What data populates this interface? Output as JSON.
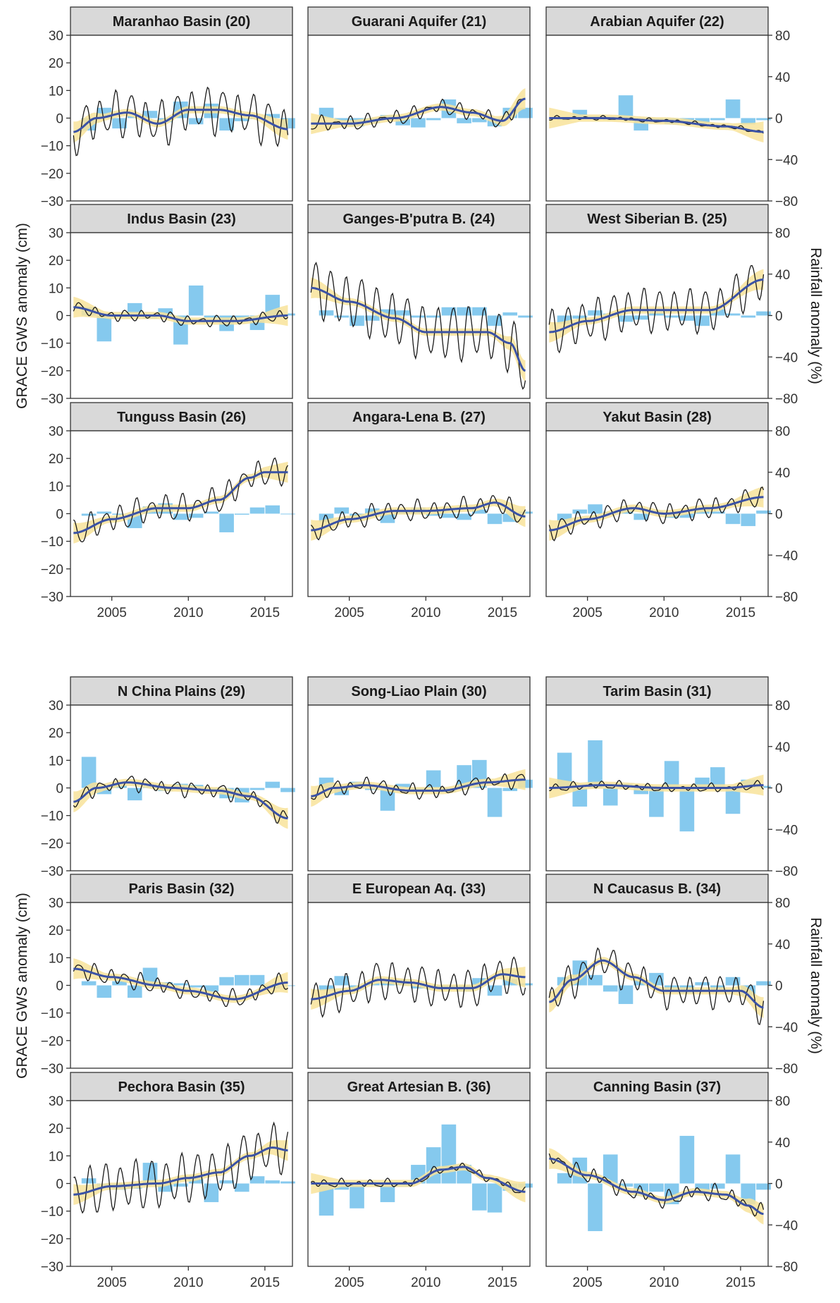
{
  "figure": {
    "left_axis_label": "GRACE GWS anomaly (cm)",
    "right_axis_label": "Rainfall anomaly (%)",
    "left_ticks": [
      30,
      20,
      10,
      0,
      -10,
      -20,
      -30
    ],
    "right_ticks": [
      80,
      40,
      0,
      -40,
      -80
    ],
    "x_ticks": [
      2005,
      2010,
      2015
    ],
    "colors": {
      "bar": "#85c9ee",
      "gws_line": "#1a1a1a",
      "smooth_line": "#3a52a6",
      "confidence_band": "#f8e39a",
      "strip_bg": "#d9d9d9",
      "panel_border": "#333333"
    }
  },
  "chart_data": [
    {
      "type": "bar+line",
      "title": "Maranhao Basin (20)",
      "xlim": [
        2002.3,
        2016.8
      ],
      "ylim_gws": [
        -30,
        30
      ],
      "ylim_rain": [
        -80,
        80
      ],
      "rain_years": [
        2003,
        2004,
        2005,
        2006,
        2007,
        2008,
        2009,
        2010,
        2011,
        2012,
        2013,
        2014,
        2015,
        2016
      ],
      "rain_values": [
        -12,
        10,
        -10,
        2,
        7,
        -4,
        16,
        -6,
        14,
        -12,
        -3,
        -1,
        4,
        -10
      ],
      "smooth_x": [
        2002.5,
        2004,
        2006,
        2008,
        2010,
        2012,
        2014,
        2016.5
      ],
      "smooth_y": [
        -5,
        0,
        2,
        -2,
        3,
        3,
        1,
        -4
      ],
      "amplitude": 7,
      "trend_noise": 3
    },
    {
      "type": "bar+line",
      "title": "Guarani Aquifer (21)",
      "xlim": [
        2002.3,
        2016.8
      ],
      "ylim_gws": [
        -30,
        30
      ],
      "ylim_rain": [
        -80,
        80
      ],
      "rain_years": [
        2003,
        2004,
        2005,
        2006,
        2007,
        2008,
        2009,
        2010,
        2011,
        2012,
        2013,
        2014,
        2015,
        2016
      ],
      "rain_values": [
        10,
        -3,
        -8,
        -5,
        3,
        -7,
        -9,
        -2,
        18,
        -5,
        -4,
        -8,
        10,
        10
      ],
      "smooth_x": [
        2002.5,
        2005,
        2008,
        2011,
        2013,
        2015,
        2016.5
      ],
      "smooth_y": [
        -2,
        -2,
        0,
        4,
        2,
        -1,
        7
      ],
      "amplitude": 2,
      "trend_noise": 1.5
    },
    {
      "type": "bar+line",
      "title": "Arabian Aquifer (22)",
      "xlim": [
        2002.3,
        2016.8
      ],
      "ylim_gws": [
        -30,
        30
      ],
      "ylim_rain": [
        -80,
        80
      ],
      "rain_years": [
        2003,
        2004,
        2005,
        2006,
        2007,
        2008,
        2009,
        2010,
        2011,
        2012,
        2013,
        2014,
        2015,
        2016
      ],
      "rain_values": [
        -2,
        8,
        2,
        -2,
        22,
        -12,
        -4,
        -6,
        -4,
        -5,
        -2,
        18,
        -6,
        -2
      ],
      "smooth_x": [
        2002.5,
        2006,
        2010,
        2014,
        2016.5
      ],
      "smooth_y": [
        0,
        0,
        -1,
        -3,
        -5
      ],
      "amplitude": 0.5,
      "trend_noise": 0.5
    },
    {
      "type": "bar+line",
      "title": "Indus Basin (23)",
      "xlim": [
        2002.3,
        2016.8
      ],
      "ylim_gws": [
        -30,
        30
      ],
      "ylim_rain": [
        -80,
        80
      ],
      "rain_years": [
        2003,
        2004,
        2005,
        2006,
        2007,
        2008,
        2009,
        2010,
        2011,
        2012,
        2013,
        2014,
        2015,
        2016
      ],
      "rain_values": [
        8,
        -25,
        -2,
        12,
        -3,
        7,
        -28,
        29,
        -2,
        -15,
        -2,
        -14,
        20,
        2
      ],
      "smooth_x": [
        2002.5,
        2005,
        2008,
        2010,
        2013,
        2016.5
      ],
      "smooth_y": [
        3,
        0,
        0,
        -2,
        -2,
        0
      ],
      "amplitude": 1.5,
      "trend_noise": 1
    },
    {
      "type": "bar+line",
      "title": "Ganges-B'putra B. (24)",
      "xlim": [
        2002.3,
        2016.8
      ],
      "ylim_gws": [
        -30,
        30
      ],
      "ylim_rain": [
        -80,
        80
      ],
      "rain_years": [
        2003,
        2004,
        2005,
        2006,
        2007,
        2008,
        2009,
        2010,
        2011,
        2012,
        2013,
        2014,
        2015,
        2016
      ],
      "rain_values": [
        5,
        -2,
        -10,
        -5,
        6,
        5,
        -2,
        -2,
        8,
        8,
        8,
        -10,
        3,
        -2
      ],
      "smooth_x": [
        2002.5,
        2005,
        2008,
        2010,
        2012,
        2014,
        2015.5,
        2016.5
      ],
      "smooth_y": [
        10,
        5,
        -1,
        -6,
        -6,
        -6,
        -10,
        -20
      ],
      "amplitude": 9,
      "trend_noise": 2
    },
    {
      "type": "bar+line",
      "title": "West Siberian B. (25)",
      "xlim": [
        2002.3,
        2016.8
      ],
      "ylim_gws": [
        -30,
        30
      ],
      "ylim_rain": [
        -80,
        80
      ],
      "rain_years": [
        2003,
        2004,
        2005,
        2006,
        2007,
        2008,
        2009,
        2010,
        2011,
        2012,
        2013,
        2014,
        2015,
        2016
      ],
      "rain_values": [
        -8,
        -3,
        5,
        2,
        -6,
        -4,
        3,
        -2,
        -5,
        -10,
        6,
        2,
        -2,
        4
      ],
      "smooth_x": [
        2002.5,
        2005,
        2008,
        2010,
        2013,
        2016.5
      ],
      "smooth_y": [
        -6,
        -2,
        2,
        2,
        2,
        13
      ],
      "amplitude": 7,
      "trend_noise": 2
    },
    {
      "type": "bar+line",
      "title": "Tunguss Basin (26)",
      "xlim": [
        2002.3,
        2016.8
      ],
      "ylim_gws": [
        -30,
        30
      ],
      "ylim_rain": [
        -80,
        80
      ],
      "rain_years": [
        2003,
        2004,
        2005,
        2006,
        2007,
        2008,
        2009,
        2010,
        2011,
        2012,
        2013,
        2014,
        2015,
        2016
      ],
      "rain_values": [
        -2,
        2,
        -1,
        -14,
        7,
        10,
        -6,
        -4,
        2,
        -18,
        -1,
        6,
        8,
        0
      ],
      "smooth_x": [
        2002.5,
        2005,
        2008,
        2010,
        2012,
        2014,
        2015,
        2016.5
      ],
      "smooth_y": [
        -7,
        -2,
        2,
        2,
        5,
        13,
        15,
        15
      ],
      "amplitude": 4,
      "trend_noise": 2
    },
    {
      "type": "bar+line",
      "title": "Angara-Lena B. (27)",
      "xlim": [
        2002.3,
        2016.8
      ],
      "ylim_gws": [
        -30,
        30
      ],
      "ylim_rain": [
        -80,
        80
      ],
      "rain_years": [
        2003,
        2004,
        2005,
        2006,
        2007,
        2008,
        2009,
        2010,
        2011,
        2012,
        2013,
        2014,
        2015,
        2016
      ],
      "rain_values": [
        -8,
        6,
        -3,
        5,
        -9,
        3,
        6,
        -2,
        -4,
        -6,
        4,
        -10,
        -8,
        2
      ],
      "smooth_x": [
        2002.5,
        2005,
        2008,
        2010,
        2013,
        2014.5,
        2016.5
      ],
      "smooth_y": [
        -6,
        -2,
        1,
        1,
        2,
        4,
        -1
      ],
      "amplitude": 3,
      "trend_noise": 1.5
    },
    {
      "type": "bar+line",
      "title": "Yakut Basin (28)",
      "xlim": [
        2002.3,
        2016.8
      ],
      "ylim_gws": [
        -30,
        30
      ],
      "ylim_rain": [
        -80,
        80
      ],
      "rain_years": [
        2003,
        2004,
        2005,
        2006,
        2007,
        2008,
        2009,
        2010,
        2011,
        2012,
        2013,
        2014,
        2015,
        2016
      ],
      "rain_values": [
        -8,
        4,
        9,
        2,
        5,
        -6,
        3,
        -4,
        -4,
        4,
        2,
        -10,
        -12,
        3
      ],
      "smooth_x": [
        2002.5,
        2005,
        2008,
        2010,
        2013,
        2016.5
      ],
      "smooth_y": [
        -6,
        -2,
        2,
        0,
        2,
        6
      ],
      "amplitude": 3,
      "trend_noise": 1.5
    },
    {
      "type": "bar+line",
      "title": "N China Plains (29)",
      "xlim": [
        2002.3,
        2016.8
      ],
      "ylim_gws": [
        -30,
        30
      ],
      "ylim_rain": [
        -80,
        80
      ],
      "rain_years": [
        2003,
        2004,
        2005,
        2006,
        2007,
        2008,
        2009,
        2010,
        2011,
        2012,
        2013,
        2014,
        2015,
        2016
      ],
      "rain_values": [
        30,
        -6,
        3,
        -12,
        2,
        -3,
        4,
        3,
        -2,
        -10,
        -14,
        -2,
        6,
        -4
      ],
      "smooth_x": [
        2002.5,
        2004,
        2006,
        2009,
        2012,
        2014,
        2016.5
      ],
      "smooth_y": [
        -5,
        0,
        2,
        0,
        -1,
        -3,
        -11
      ],
      "amplitude": 2,
      "trend_noise": 1.5
    },
    {
      "type": "bar+line",
      "title": "Song-Liao Plain (30)",
      "xlim": [
        2002.3,
        2016.8
      ],
      "ylim_gws": [
        -30,
        30
      ],
      "ylim_rain": [
        -80,
        80
      ],
      "rain_years": [
        2003,
        2004,
        2005,
        2006,
        2007,
        2008,
        2009,
        2010,
        2011,
        2012,
        2013,
        2014,
        2015,
        2016
      ],
      "rain_values": [
        10,
        -7,
        6,
        -2,
        -22,
        4,
        -2,
        17,
        -4,
        22,
        27,
        -28,
        -3,
        8
      ],
      "smooth_x": [
        2002.5,
        2004,
        2006,
        2009,
        2011,
        2014,
        2016.5
      ],
      "smooth_y": [
        -3,
        0,
        1,
        -1,
        -1,
        2,
        3
      ],
      "amplitude": 2,
      "trend_noise": 1.5
    },
    {
      "type": "bar+line",
      "title": "Tarim Basin (31)",
      "xlim": [
        2002.3,
        2016.8
      ],
      "ylim_gws": [
        -30,
        30
      ],
      "ylim_rain": [
        -80,
        80
      ],
      "rain_years": [
        2003,
        2004,
        2005,
        2006,
        2007,
        2008,
        2009,
        2010,
        2011,
        2012,
        2013,
        2014,
        2015,
        2016
      ],
      "rain_values": [
        34,
        -18,
        46,
        -17,
        4,
        -6,
        -28,
        26,
        -42,
        10,
        20,
        -25,
        8,
        2
      ],
      "smooth_x": [
        2002.5,
        2006,
        2010,
        2014,
        2016.5
      ],
      "smooth_y": [
        0,
        1,
        0,
        0,
        1
      ],
      "amplitude": 1,
      "trend_noise": 1
    },
    {
      "type": "bar+line",
      "title": "Paris Basin (32)",
      "xlim": [
        2002.3,
        2016.8
      ],
      "ylim_gws": [
        -30,
        30
      ],
      "ylim_rain": [
        -80,
        80
      ],
      "rain_years": [
        2003,
        2004,
        2005,
        2006,
        2007,
        2008,
        2009,
        2010,
        2011,
        2012,
        2013,
        2014,
        2015,
        2016
      ],
      "rain_values": [
        4,
        -12,
        4,
        -12,
        17,
        3,
        2,
        -2,
        -6,
        8,
        10,
        10,
        -3,
        0
      ],
      "smooth_x": [
        2002.5,
        2005,
        2008,
        2010,
        2013,
        2016.5
      ],
      "smooth_y": [
        6,
        3,
        0,
        -2,
        -5,
        1
      ],
      "amplitude": 2.5,
      "trend_noise": 1.5
    },
    {
      "type": "bar+line",
      "title": "E European Aq. (33)",
      "xlim": [
        2002.3,
        2016.8
      ],
      "ylim_gws": [
        -30,
        30
      ],
      "ylim_rain": [
        -80,
        80
      ],
      "rain_years": [
        2003,
        2004,
        2005,
        2006,
        2007,
        2008,
        2009,
        2010,
        2011,
        2012,
        2013,
        2014,
        2015,
        2016
      ],
      "rain_values": [
        -5,
        9,
        -4,
        2,
        4,
        6,
        -3,
        -4,
        -2,
        -6,
        7,
        -10,
        6,
        2
      ],
      "smooth_x": [
        2002.5,
        2005,
        2007,
        2009,
        2011,
        2013,
        2015,
        2016.5
      ],
      "smooth_y": [
        -5,
        -2,
        2,
        1,
        -1,
        -1,
        4,
        3
      ],
      "amplitude": 6,
      "trend_noise": 2
    },
    {
      "type": "bar+line",
      "title": "N Caucasus B. (34)",
      "xlim": [
        2002.3,
        2016.8
      ],
      "ylim_gws": [
        -30,
        30
      ],
      "ylim_rain": [
        -80,
        80
      ],
      "rain_years": [
        2003,
        2004,
        2005,
        2006,
        2007,
        2008,
        2009,
        2010,
        2011,
        2012,
        2013,
        2014,
        2015,
        2016
      ],
      "rain_values": [
        8,
        24,
        10,
        -6,
        -18,
        5,
        12,
        -5,
        -8,
        3,
        -4,
        8,
        -10,
        4
      ],
      "smooth_x": [
        2002.5,
        2004,
        2006,
        2008,
        2010,
        2013,
        2015,
        2016.5
      ],
      "smooth_y": [
        -6,
        2,
        9,
        3,
        -2,
        -2,
        -2,
        -8
      ],
      "amplitude": 5,
      "trend_noise": 2
    },
    {
      "type": "bar+line",
      "title": "Pechora Basin (35)",
      "xlim": [
        2002.3,
        2016.8
      ],
      "ylim_gws": [
        -30,
        30
      ],
      "ylim_rain": [
        -80,
        80
      ],
      "rain_years": [
        2003,
        2004,
        2005,
        2006,
        2007,
        2008,
        2009,
        2010,
        2011,
        2012,
        2013,
        2014,
        2015,
        2016
      ],
      "rain_values": [
        5,
        -4,
        -6,
        -5,
        20,
        -8,
        -3,
        8,
        -18,
        3,
        -8,
        7,
        3,
        2
      ],
      "smooth_x": [
        2002.5,
        2005,
        2008,
        2010,
        2012,
        2014,
        2015.5,
        2016.5
      ],
      "smooth_y": [
        -4,
        -1,
        0,
        2,
        4,
        10,
        13,
        12
      ],
      "amplitude": 8,
      "trend_noise": 2
    },
    {
      "type": "bar+line",
      "title": "Great Artesian B. (36)",
      "xlim": [
        2002.3,
        2016.8
      ],
      "ylim_gws": [
        -30,
        30
      ],
      "ylim_rain": [
        -80,
        80
      ],
      "rain_years": [
        2003,
        2004,
        2005,
        2006,
        2007,
        2008,
        2009,
        2010,
        2011,
        2012,
        2013,
        2014,
        2015,
        2016
      ],
      "rain_values": [
        -31,
        -6,
        -24,
        2,
        -18,
        -3,
        18,
        35,
        57,
        18,
        -26,
        -28,
        -7,
        -4
      ],
      "smooth_x": [
        2002.5,
        2006,
        2009,
        2011,
        2012.5,
        2014,
        2016.5
      ],
      "smooth_y": [
        0,
        0,
        0,
        5,
        6,
        2,
        -3
      ],
      "amplitude": 1,
      "trend_noise": 1
    },
    {
      "type": "bar+line",
      "title": "Canning Basin (37)",
      "xlim": [
        2002.3,
        2016.8
      ],
      "ylim_gws": [
        -30,
        30
      ],
      "ylim_rain": [
        -80,
        80
      ],
      "rain_years": [
        2003,
        2004,
        2005,
        2006,
        2007,
        2008,
        2009,
        2010,
        2011,
        2012,
        2013,
        2014,
        2015,
        2016
      ],
      "rain_values": [
        10,
        25,
        -46,
        28,
        -3,
        -12,
        -8,
        -20,
        46,
        -10,
        -5,
        28,
        -20,
        -6
      ],
      "smooth_x": [
        2002.5,
        2005,
        2008,
        2010,
        2012,
        2014,
        2015.5,
        2016.5
      ],
      "smooth_y": [
        9,
        3,
        -3,
        -6,
        -3,
        -4,
        -8,
        -11
      ],
      "amplitude": 2,
      "trend_noise": 2
    }
  ]
}
